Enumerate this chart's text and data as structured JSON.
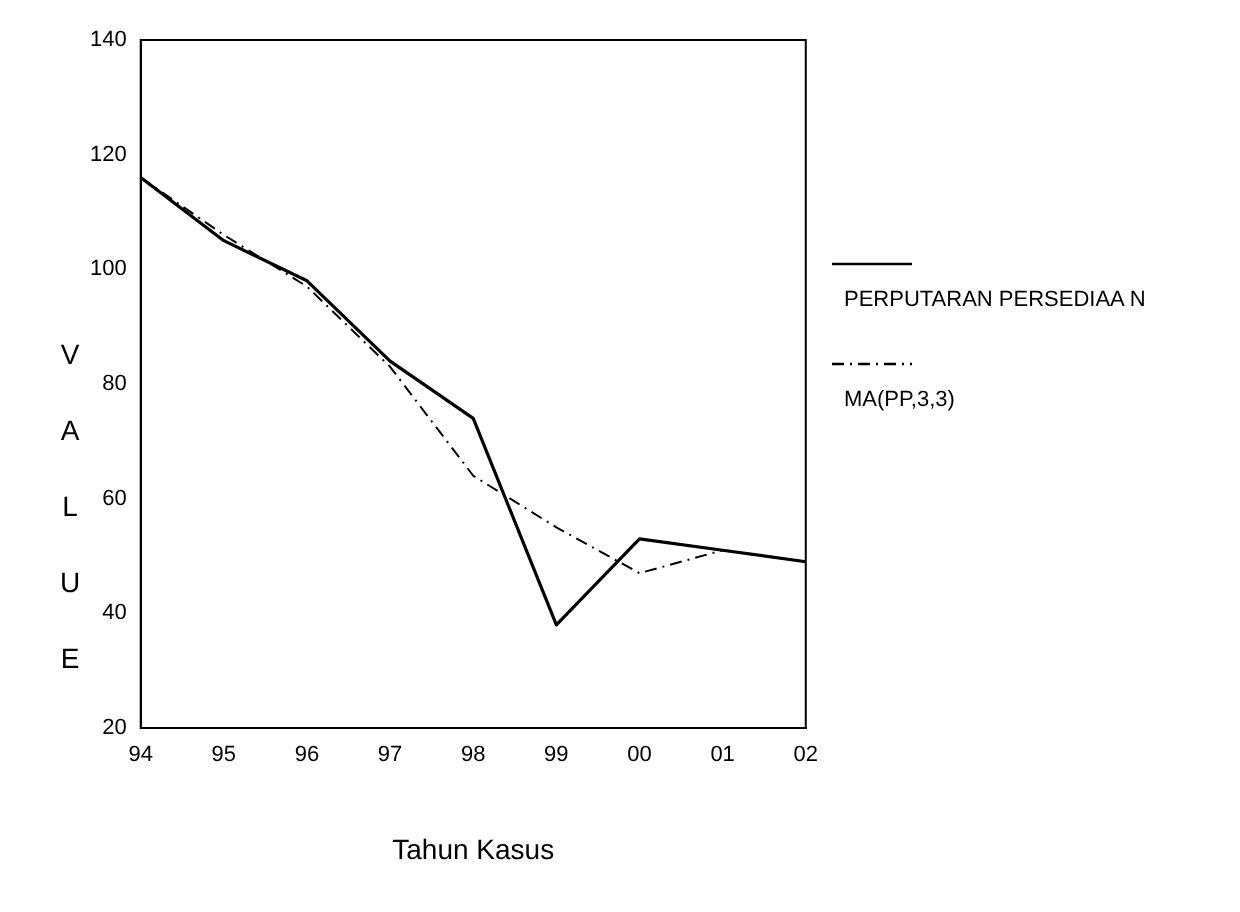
{
  "chart_data": {
    "type": "line",
    "xlabel": "Tahun Kasus",
    "ylabel": "VALUE",
    "categories": [
      "94",
      "95",
      "96",
      "97",
      "98",
      "99",
      "00",
      "01",
      "02"
    ],
    "series": [
      {
        "name": "PERPUTARAN PERSEDIAA N",
        "color": "#000000",
        "line_style": "solid",
        "values": [
          116,
          105,
          98,
          84,
          74,
          38,
          53,
          51,
          49
        ]
      },
      {
        "name": "MA(PP,3,3)",
        "color": "#000000",
        "line_style": "dashed",
        "values": [
          116,
          106,
          97,
          83,
          64,
          55,
          47,
          51,
          49
        ]
      }
    ],
    "ylim": [
      20,
      140
    ],
    "yticks": [
      20,
      40,
      60,
      80,
      100,
      120,
      140
    ],
    "grid": false,
    "legend": "right",
    "marker": "none"
  }
}
